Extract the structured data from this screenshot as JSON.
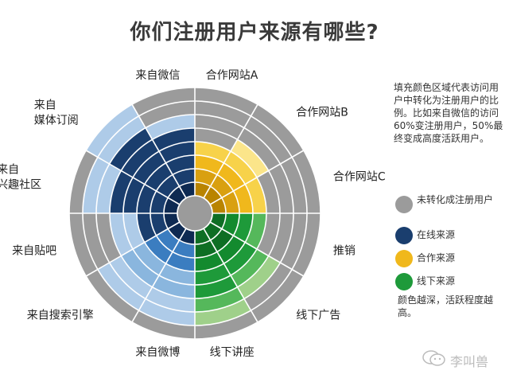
{
  "title": "你们注册用户来源有哪些?",
  "note": "填充颜色区域代表访问用户中转化为注册用户的比例。比如来自微信的访问60%变注册用户，50%最终变成高度活跃用户。",
  "legend": {
    "items": [
      {
        "label": "未转化成注册用户",
        "color": "#9b9b9b"
      },
      {
        "label": "在线来源",
        "color": "#1a3e6e"
      },
      {
        "label": "合作来源",
        "color": "#f0b81c"
      },
      {
        "label": "线下来源",
        "color": "#1e9a3a"
      }
    ],
    "footnote": "颜色越深，活跃程度越高。"
  },
  "watermark": "李叫兽",
  "chart_data": {
    "type": "radial-bar",
    "rings": 8,
    "title": "你们注册用户来源有哪些?",
    "shades_order": "inner-to-outer",
    "categories": [
      "合作网站A",
      "合作网站B",
      "合作网站C",
      "推销",
      "线下广告",
      "线下讲座",
      "来自微博",
      "来自搜索引擎",
      "来自贴吧",
      "来自兴趣社区",
      "来自媒体订阅",
      "来自微信"
    ],
    "series": [
      {
        "name": "合作来源",
        "color_shades": [
          "#b98400",
          "#d9a010",
          "#f0b81c",
          "#f7d24a",
          "#fbe58a"
        ],
        "values": [
          4,
          5,
          4,
          0,
          0,
          0,
          0,
          0,
          0,
          0,
          0,
          0
        ]
      },
      {
        "name": "线下来源",
        "color_shades": [
          "#0e6e24",
          "#138a2e",
          "#1e9a3a",
          "#55b85b",
          "#9fd08a"
        ],
        "values": [
          0,
          0,
          0,
          4,
          6,
          7,
          0,
          0,
          0,
          0,
          0,
          0
        ]
      },
      {
        "name": "在线来源",
        "color_shades": [
          "#0e2a52",
          "#1a3e6e",
          "#1f5a9c",
          "#3b7dc0",
          "#8ab6de",
          "#aecbe8"
        ],
        "values": [
          0,
          0,
          0,
          0,
          0,
          0,
          7,
          7,
          5,
          7,
          8,
          6
        ]
      }
    ],
    "active": [
      0,
      0,
      0,
      0,
      0,
      0,
      1,
      1,
      3,
      5,
      6,
      5
    ]
  }
}
